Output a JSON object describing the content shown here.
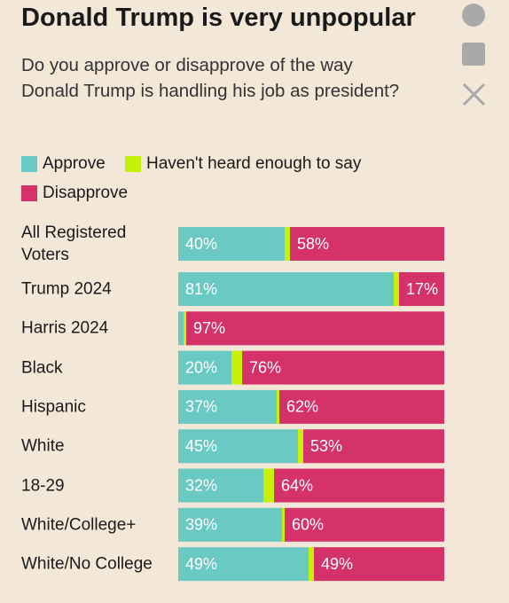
{
  "chart_data": {
    "type": "stacked-bar-horizontal",
    "title": "Donald Trump is very unpopular",
    "subtitle": "Do you approve or disapprove of the way Donald Trump is handling his job as president?",
    "categories": [
      "All Registered Voters",
      "Trump 2024",
      "Harris 2024",
      "Black",
      "Hispanic",
      "White",
      "18-29",
      "White/College+",
      "White/No College"
    ],
    "xlim": [
      0,
      100
    ],
    "series": [
      {
        "name": "Approve",
        "color": "#6bc9c3",
        "values": [
          40,
          81,
          2,
          20,
          37,
          45,
          32,
          39,
          49
        ],
        "value_labels": [
          "40%",
          "81%",
          null,
          "20%",
          "37%",
          "45%",
          "32%",
          "39%",
          "49%"
        ]
      },
      {
        "name": "Haven't heard enough to say",
        "color": "#c6ef0a",
        "values": [
          2,
          2,
          1,
          4,
          1,
          2,
          4,
          1,
          2
        ]
      },
      {
        "name": "Disapprove",
        "color": "#d6326a",
        "values": [
          58,
          17,
          97,
          76,
          62,
          53,
          64,
          60,
          49
        ],
        "value_labels": [
          "58%",
          "17%",
          "97%",
          "76%",
          "62%",
          "53%",
          "64%",
          "60%",
          "49%"
        ]
      }
    ]
  }
}
